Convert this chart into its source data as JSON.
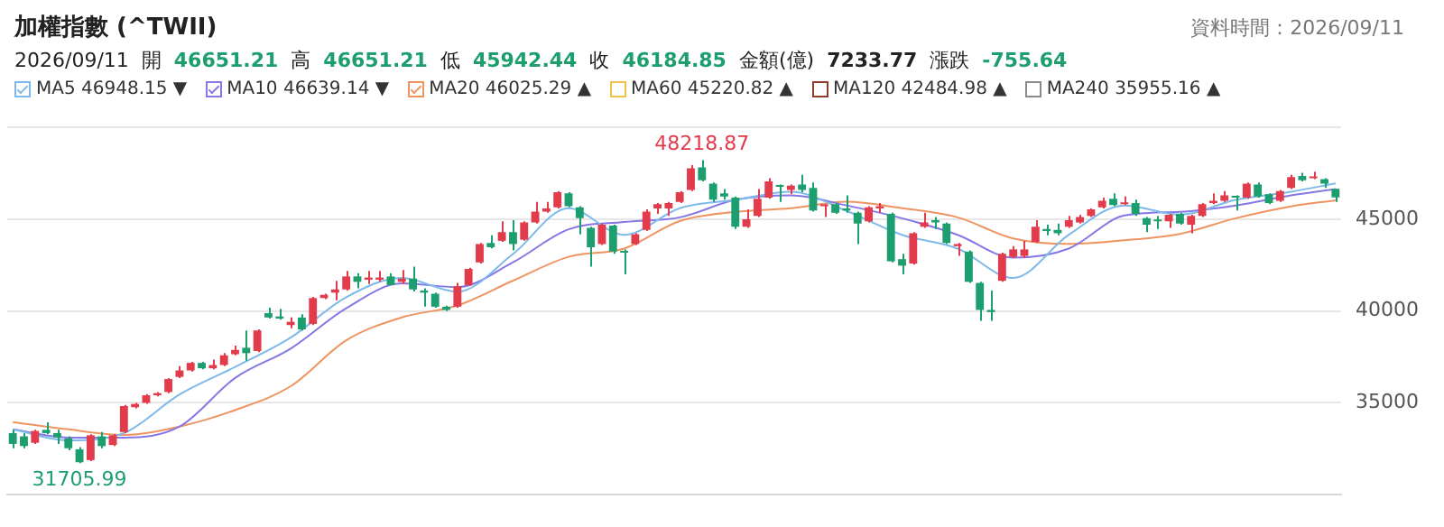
{
  "chart_data": {
    "type": "candlestick",
    "title": "加權指數 (^TWII)",
    "subtitle": "2026/09/11 開 46651.21 高 46651.21 低 45942.44 收 46184.85 金額(億) 7233.77 漲跌 -755.64",
    "annotations": [
      "資料時間：2026/09/11",
      {
        "text": "48218.87",
        "y": 48218.87
      },
      {
        "text": "31705.99",
        "y": 31705.99
      }
    ],
    "categories": [
      null,
      null,
      null,
      null,
      null,
      null,
      null,
      null,
      null,
      null,
      null,
      null,
      null,
      null,
      null,
      null,
      null,
      null,
      null,
      null,
      null,
      null,
      null,
      null,
      null,
      null,
      null,
      null,
      null,
      null,
      null,
      null,
      null,
      null,
      null,
      null,
      null,
      null,
      null,
      null,
      null,
      null,
      null,
      null,
      null,
      null,
      null,
      null,
      null,
      null,
      null,
      null,
      null,
      null,
      null,
      null,
      null,
      null,
      null,
      null,
      null,
      null,
      null,
      null,
      null,
      null,
      null,
      null,
      null,
      null,
      null,
      null,
      null,
      null,
      null,
      null,
      null,
      null,
      null,
      null,
      null,
      null,
      null,
      null,
      null,
      null,
      null,
      null,
      null,
      null,
      null,
      null,
      null,
      null,
      null,
      null,
      null,
      null,
      null,
      null,
      null,
      null,
      null,
      null,
      null,
      null,
      null,
      null,
      null,
      null,
      null,
      null,
      null,
      null,
      null,
      null,
      null,
      null,
      null,
      null
    ],
    "ohlc": [
      [
        33346,
        33523,
        32522,
        32757
      ],
      [
        33170,
        33346,
        32522,
        32640
      ],
      [
        32816,
        33523,
        32757,
        33464
      ],
      [
        33523,
        33935,
        33287,
        33346
      ],
      [
        33346,
        33523,
        32757,
        33111
      ],
      [
        33052,
        33170,
        32404,
        32522
      ],
      [
        32463,
        32581,
        31705.99,
        31757
      ],
      [
        31874,
        33287,
        31815,
        33229
      ],
      [
        33170,
        33405,
        32522,
        32640
      ],
      [
        32698,
        33287,
        32640,
        33229
      ],
      [
        33405,
        34876,
        33346,
        34817
      ],
      [
        34758,
        34994,
        34699,
        34935
      ],
      [
        34994,
        35465,
        34935,
        35406
      ],
      [
        35406,
        35583,
        35347,
        35524
      ],
      [
        35583,
        36348,
        35524,
        36289
      ],
      [
        36407,
        36996,
        36348,
        36760
      ],
      [
        36760,
        37231,
        36701,
        37172
      ],
      [
        37172,
        37231,
        36819,
        36878
      ],
      [
        36878,
        37349,
        36819,
        37055
      ],
      [
        37055,
        37702,
        36996,
        37584
      ],
      [
        37643,
        38114,
        37584,
        37878
      ],
      [
        37996,
        38938,
        37290,
        37702
      ],
      [
        37819,
        38997,
        37761,
        38938
      ],
      [
        39880,
        40174,
        39585,
        39644
      ],
      [
        39703,
        40115,
        39526,
        39585
      ],
      [
        39232,
        39644,
        39056,
        39409
      ],
      [
        39644,
        39821,
        38938,
        38997
      ],
      [
        39291,
        40762,
        39232,
        40703
      ],
      [
        40703,
        40939,
        40645,
        40880
      ],
      [
        40998,
        41645,
        40586,
        41174
      ],
      [
        41174,
        42175,
        41115,
        41881
      ],
      [
        41881,
        42057,
        41233,
        41586
      ],
      [
        41704,
        42175,
        41468,
        41822
      ],
      [
        41704,
        42175,
        41586,
        41822
      ],
      [
        41881,
        42057,
        41409,
        41409
      ],
      [
        41586,
        42234,
        41468,
        41763
      ],
      [
        41763,
        42410,
        41057,
        41174
      ],
      [
        41115,
        41233,
        40233,
        40998
      ],
      [
        40939,
        40998,
        40174,
        40233
      ],
      [
        40233,
        40292,
        39997,
        40056
      ],
      [
        40233,
        41527,
        40174,
        41351
      ],
      [
        41409,
        42351,
        41351,
        42293
      ],
      [
        42646,
        43705,
        42587,
        43646
      ],
      [
        43705,
        44117,
        43411,
        43470
      ],
      [
        43823,
        44883,
        43764,
        44294
      ],
      [
        44294,
        44941,
        43293,
        43646
      ],
      [
        43882,
        44883,
        43823,
        44824
      ],
      [
        44824,
        45942,
        44765,
        45412
      ],
      [
        45412,
        45942,
        45353,
        45589
      ],
      [
        45648,
        46531,
        45589,
        46472
      ],
      [
        46413,
        46472,
        45648,
        45707
      ],
      [
        45648,
        45707,
        44176,
        45059
      ],
      [
        44529,
        44588,
        42410,
        43470
      ],
      [
        43646,
        44765,
        43588,
        44706
      ],
      [
        44647,
        44706,
        43117,
        43234
      ],
      [
        43234,
        43352,
        41998,
        43176
      ],
      [
        43646,
        44235,
        43588,
        44176
      ],
      [
        44412,
        45530,
        44353,
        45412
      ],
      [
        45589,
        45883,
        45294,
        45824
      ],
      [
        45589,
        45942,
        45177,
        45883
      ],
      [
        45942,
        46531,
        45883,
        46472
      ],
      [
        46590,
        47943,
        46531,
        47767
      ],
      [
        47826,
        48218.87,
        47060,
        47119
      ],
      [
        46943,
        47002,
        45942,
        46060
      ],
      [
        46413,
        46648,
        46060,
        46236
      ],
      [
        46177,
        46236,
        44470,
        44588
      ],
      [
        44588,
        45530,
        44529,
        45000
      ],
      [
        45177,
        46648,
        45118,
        46119
      ],
      [
        46177,
        47237,
        46119,
        47060
      ],
      [
        46825,
        46884,
        45942,
        46766
      ],
      [
        46590,
        46884,
        46354,
        46825
      ],
      [
        46884,
        47414,
        46472,
        46590
      ],
      [
        46707,
        47002,
        45412,
        45471
      ],
      [
        45707,
        45824,
        45118,
        45765
      ],
      [
        45824,
        45883,
        45294,
        45353
      ],
      [
        45589,
        46295,
        45353,
        45471
      ],
      [
        45353,
        45412,
        43646,
        44765
      ],
      [
        44883,
        45707,
        44824,
        45648
      ],
      [
        45589,
        45883,
        45353,
        45707
      ],
      [
        45294,
        45353,
        42646,
        42705
      ],
      [
        42822,
        43117,
        41998,
        42469
      ],
      [
        42587,
        44294,
        42528,
        44235
      ],
      [
        44588,
        45353,
        44529,
        44824
      ],
      [
        44941,
        45118,
        44470,
        44824
      ],
      [
        44765,
        44824,
        43646,
        43705
      ],
      [
        43529,
        43705,
        42999,
        43646
      ],
      [
        43234,
        43293,
        41527,
        41586
      ],
      [
        41527,
        41586,
        39467,
        40056
      ],
      [
        40056,
        41115,
        39467,
        39938
      ],
      [
        41645,
        43176,
        41586,
        43117
      ],
      [
        42940,
        43529,
        42881,
        43352
      ],
      [
        42999,
        43823,
        42881,
        43352
      ],
      [
        43764,
        44941,
        43705,
        44588
      ],
      [
        44470,
        44706,
        44117,
        44353
      ],
      [
        44412,
        44765,
        44117,
        44235
      ],
      [
        44588,
        45177,
        44529,
        44941
      ],
      [
        44824,
        45236,
        44765,
        45118
      ],
      [
        45177,
        45589,
        45118,
        45530
      ],
      [
        45648,
        46177,
        45589,
        46001
      ],
      [
        46119,
        46413,
        45707,
        45765
      ],
      [
        45824,
        46236,
        45765,
        45883
      ],
      [
        45883,
        46060,
        45177,
        45294
      ],
      [
        45059,
        45118,
        44294,
        44706
      ],
      [
        44941,
        45177,
        44470,
        44883
      ],
      [
        44883,
        45294,
        44529,
        45236
      ],
      [
        45294,
        45353,
        44706,
        44765
      ],
      [
        44706,
        45236,
        44235,
        45177
      ],
      [
        45177,
        45883,
        45118,
        45824
      ],
      [
        45883,
        46413,
        45824,
        46001
      ],
      [
        46001,
        46531,
        45942,
        46295
      ],
      [
        46236,
        46295,
        45471,
        46177
      ],
      [
        46177,
        47002,
        46119,
        46943
      ],
      [
        46884,
        47002,
        46177,
        46236
      ],
      [
        46354,
        46413,
        45824,
        45883
      ],
      [
        46001,
        46590,
        45942,
        46531
      ],
      [
        46707,
        47414,
        46648,
        47296
      ],
      [
        47355,
        47531,
        47060,
        47119
      ],
      [
        47237,
        47590,
        47178,
        47296
      ],
      [
        47178,
        47237,
        46707,
        46943
      ],
      [
        46651.21,
        46651.21,
        45942.44,
        46184.85
      ]
    ],
    "colors": [
      "#1d9e6f",
      "#1d9e6f",
      "#e23b4c",
      "#1d9e6f",
      "#1d9e6f",
      "#1d9e6f",
      "#1d9e6f",
      "#e23b4c",
      "#1d9e6f",
      "#e23b4c",
      "#e23b4c",
      "#e23b4c",
      "#e23b4c",
      "#e23b4c",
      "#e23b4c",
      "#e23b4c",
      "#e23b4c",
      "#1d9e6f",
      "#e23b4c",
      "#e23b4c",
      "#e23b4c",
      "#1d9e6f",
      "#e23b4c",
      "#1d9e6f",
      "#1d9e6f",
      "#e23b4c",
      "#1d9e6f",
      "#e23b4c",
      "#e23b4c",
      "#e23b4c",
      "#e23b4c",
      "#1d9e6f",
      "#e23b4c",
      "#e23b4c",
      "#1d9e6f",
      "#e23b4c",
      "#1d9e6f",
      "#1d9e6f",
      "#1d9e6f",
      "#1d9e6f",
      "#e23b4c",
      "#e23b4c",
      "#e23b4c",
      "#1d9e6f",
      "#e23b4c",
      "#1d9e6f",
      "#e23b4c",
      "#e23b4c",
      "#e23b4c",
      "#e23b4c",
      "#1d9e6f",
      "#1d9e6f",
      "#1d9e6f",
      "#e23b4c",
      "#1d9e6f",
      "#1d9e6f",
      "#e23b4c",
      "#e23b4c",
      "#e23b4c",
      "#e23b4c",
      "#e23b4c",
      "#e23b4c",
      "#1d9e6f",
      "#1d9e6f",
      "#1d9e6f",
      "#1d9e6f",
      "#e23b4c",
      "#e23b4c",
      "#e23b4c",
      "#1d9e6f",
      "#e23b4c",
      "#1d9e6f",
      "#1d9e6f",
      "#e23b4c",
      "#1d9e6f",
      "#1d9e6f",
      "#1d9e6f",
      "#e23b4c",
      "#e23b4c",
      "#1d9e6f",
      "#1d9e6f",
      "#e23b4c",
      "#e23b4c",
      "#1d9e6f",
      "#1d9e6f",
      "#e23b4c",
      "#1d9e6f",
      "#1d9e6f",
      "#1d9e6f",
      "#e23b4c",
      "#e23b4c",
      "#e23b4c",
      "#e23b4c",
      "#1d9e6f",
      "#1d9e6f",
      "#e23b4c",
      "#e23b4c",
      "#e23b4c",
      "#e23b4c",
      "#1d9e6f",
      "#e23b4c",
      "#1d9e6f",
      "#1d9e6f",
      "#1d9e6f",
      "#e23b4c",
      "#1d9e6f",
      "#e23b4c",
      "#e23b4c",
      "#e23b4c",
      "#e23b4c",
      "#1d9e6f",
      "#e23b4c",
      "#1d9e6f",
      "#1d9e6f",
      "#e23b4c",
      "#e23b4c",
      "#1d9e6f",
      "#e23b4c",
      "#1d9e6f",
      "#1d9e6f"
    ],
    "series": [
      {
        "type": "line",
        "name": "MA5 46948.15 ▼",
        "color": "#7db9ea",
        "values": [
          33550,
          null,
          null,
          null,
          null,
          32950,
          null,
          null,
          null,
          null,
          33350,
          null,
          null,
          null,
          null,
          35450,
          null,
          null,
          null,
          null,
          36950,
          null,
          null,
          null,
          null,
          38550,
          null,
          null,
          null,
          null,
          40750,
          null,
          null,
          null,
          null,
          41800,
          null,
          null,
          null,
          null,
          41050,
          null,
          null,
          null,
          null,
          43100,
          null,
          null,
          null,
          null,
          45600,
          null,
          null,
          null,
          null,
          44150,
          null,
          null,
          null,
          null,
          45600,
          null,
          null,
          null,
          null,
          46050,
          null,
          null,
          null,
          null,
          46500,
          null,
          null,
          null,
          null,
          45450,
          null,
          null,
          null,
          null,
          44150,
          null,
          null,
          null,
          null,
          43400,
          null,
          null,
          null,
          null,
          41800,
          null,
          null,
          null,
          null,
          44150,
          null,
          null,
          null,
          null,
          45750,
          null,
          null,
          null,
          null,
          45250,
          null,
          null,
          null,
          null,
          46050,
          null,
          null,
          null,
          null,
          46500,
          null,
          null,
          null,
          46948.15
        ]
      },
      {
        "type": "line",
        "name": "MA10 46639.14 ▼",
        "color": "#8577e6",
        "values": [
          33550,
          null,
          null,
          null,
          null,
          33100,
          null,
          null,
          null,
          null,
          33100,
          null,
          null,
          null,
          null,
          33700,
          null,
          null,
          null,
          null,
          36350,
          null,
          null,
          null,
          null,
          37950,
          null,
          null,
          null,
          null,
          40150,
          null,
          null,
          null,
          null,
          41500,
          null,
          null,
          null,
          null,
          41300,
          null,
          null,
          null,
          null,
          42650,
          null,
          null,
          null,
          null,
          44450,
          null,
          null,
          null,
          null,
          44850,
          null,
          null,
          null,
          null,
          45100,
          null,
          null,
          null,
          null,
          46050,
          null,
          null,
          null,
          null,
          46300,
          null,
          null,
          null,
          null,
          45750,
          null,
          null,
          null,
          null,
          45050,
          null,
          null,
          null,
          null,
          44150,
          null,
          null,
          null,
          null,
          42900,
          null,
          null,
          null,
          null,
          43400,
          null,
          null,
          null,
          null,
          45200,
          null,
          null,
          null,
          null,
          45400,
          null,
          null,
          null,
          null,
          45750,
          null,
          null,
          null,
          null,
          46300,
          null,
          null,
          null,
          46639.14
        ]
      },
      {
        "type": "line",
        "name": "MA20 46025.29 ▲",
        "color": "#ef9461",
        "values": [
          33950,
          null,
          null,
          null,
          null,
          33550,
          null,
          null,
          null,
          null,
          33250,
          null,
          null,
          null,
          null,
          33700,
          null,
          null,
          null,
          null,
          34600,
          null,
          null,
          null,
          null,
          35900,
          null,
          null,
          null,
          null,
          38400,
          null,
          null,
          null,
          null,
          39650,
          null,
          null,
          null,
          null,
          40300,
          null,
          null,
          null,
          null,
          41650,
          null,
          null,
          null,
          null,
          42950,
          null,
          null,
          null,
          null,
          43400,
          null,
          null,
          null,
          null,
          44900,
          null,
          null,
          null,
          null,
          45400,
          null,
          null,
          null,
          null,
          45600,
          null,
          null,
          null,
          null,
          45950,
          null,
          null,
          null,
          null,
          45600,
          null,
          null,
          null,
          null,
          45100,
          null,
          null,
          null,
          null,
          43950,
          null,
          null,
          null,
          null,
          43650,
          null,
          null,
          null,
          null,
          43850,
          null,
          null,
          null,
          null,
          44200,
          null,
          null,
          null,
          null,
          45050,
          null,
          null,
          null,
          null,
          45700,
          null,
          null,
          null,
          46025.29
        ]
      },
      {
        "type": "line",
        "name": "MA60 45220.82 ▲",
        "color": "#f3c04a",
        "values": [
          null,
          null,
          null,
          null,
          null,
          null,
          null,
          null,
          null,
          null,
          null,
          null,
          null,
          null,
          null,
          null,
          null,
          null,
          null,
          null,
          null,
          null,
          null,
          null,
          null,
          null,
          null,
          null,
          null,
          null,
          null,
          null,
          null,
          null,
          null,
          null,
          null,
          null,
          null,
          null,
          null,
          null,
          null,
          null,
          null,
          null,
          null,
          null,
          null,
          null,
          null,
          null,
          null,
          null,
          null,
          null,
          null,
          null,
          null,
          null,
          null,
          null,
          null,
          null,
          null,
          null,
          null,
          null,
          null,
          null,
          null,
          null,
          null,
          null,
          null,
          null,
          null,
          null,
          null,
          null,
          null,
          null,
          null,
          null,
          null,
          null,
          null,
          null,
          null,
          null,
          null,
          null,
          null,
          null,
          null,
          null,
          null,
          null,
          null,
          null,
          null,
          null,
          null,
          null,
          null,
          null,
          null,
          null,
          null,
          null,
          null,
          null,
          null,
          null,
          null,
          null,
          null,
          null,
          null,
          null
        ]
      },
      {
        "type": "line",
        "name": "MA120 42484.98 ▲",
        "color": "#8e3b2c",
        "values": [
          null,
          null,
          null,
          null,
          null,
          null,
          null,
          null,
          null,
          null,
          null,
          null,
          null,
          null,
          null,
          null,
          null,
          null,
          null,
          null,
          null,
          null,
          null,
          null,
          null,
          null,
          null,
          null,
          null,
          null,
          null,
          null,
          null,
          null,
          null,
          null,
          null,
          null,
          null,
          null,
          null,
          null,
          null,
          null,
          null,
          null,
          null,
          null,
          null,
          null,
          null,
          null,
          null,
          null,
          null,
          null,
          null,
          null,
          null,
          null,
          null,
          null,
          null,
          null,
          null,
          null,
          null,
          null,
          null,
          null,
          null,
          null,
          null,
          null,
          null,
          null,
          null,
          null,
          null,
          null,
          null,
          null,
          null,
          null,
          null,
          null,
          null,
          null,
          null,
          null,
          null,
          null,
          null,
          null,
          null,
          null,
          null,
          null,
          null,
          null,
          null,
          null,
          null,
          null,
          null,
          null,
          null,
          null,
          null,
          null,
          null,
          null,
          null,
          null,
          null,
          null,
          null,
          null,
          null,
          null
        ]
      },
      {
        "type": "line",
        "name": "MA240 35955.16 ▲",
        "color": "#8a8a8a",
        "values": [
          null,
          null,
          null,
          null,
          null,
          null,
          null,
          null,
          null,
          null,
          null,
          null,
          null,
          null,
          null,
          null,
          null,
          null,
          null,
          null,
          null,
          null,
          null,
          null,
          null,
          null,
          null,
          null,
          null,
          null,
          null,
          null,
          null,
          null,
          null,
          null,
          null,
          null,
          null,
          null,
          null,
          null,
          null,
          null,
          null,
          null,
          null,
          null,
          null,
          null,
          null,
          null,
          null,
          null,
          null,
          null,
          null,
          null,
          null,
          null,
          null,
          null,
          null,
          null,
          null,
          null,
          null,
          null,
          null,
          null,
          null,
          null,
          null,
          null,
          null,
          null,
          null,
          null,
          null,
          null,
          null,
          null,
          null,
          null,
          null,
          null,
          null,
          null,
          null,
          null,
          null,
          null,
          null,
          null,
          null,
          null,
          null,
          null,
          null,
          null,
          null,
          null,
          null,
          null,
          null,
          null,
          null,
          null,
          null,
          null,
          null,
          null,
          null,
          null,
          null,
          null,
          null,
          null,
          null,
          null
        ]
      }
    ],
    "ylim": [
      30000,
      50000
    ],
    "yticks": [
      35000,
      40000,
      45000,
      {
        "value": 50000,
        "label": null
      }
    ],
    "grid": "y",
    "tick_labels": "y",
    "legend": "top left",
    "marker": "none",
    "line_style": "solid"
  }
}
